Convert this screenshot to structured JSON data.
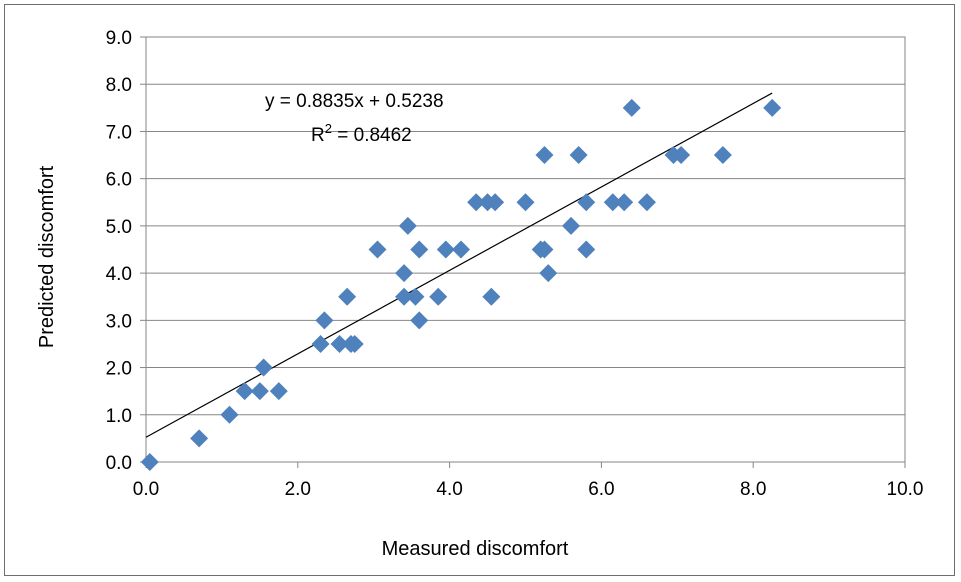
{
  "chart_data": {
    "type": "scatter",
    "title": "",
    "xlabel": "Measured discomfort",
    "ylabel": "Predicted discomfort",
    "xlim": [
      0,
      10
    ],
    "ylim": [
      0,
      9
    ],
    "xticks": [
      "0.0",
      "2.0",
      "4.0",
      "6.0",
      "8.0",
      "10.0"
    ],
    "yticks": [
      "0.0",
      "1.0",
      "2.0",
      "3.0",
      "4.0",
      "5.0",
      "6.0",
      "7.0",
      "8.0",
      "9.0"
    ],
    "grid": "horizontal",
    "legend": "none",
    "colors": {
      "marker": "#4f81bd",
      "trendline": "#000000",
      "gridline": "#868686"
    },
    "marker": "diamond",
    "series": [
      {
        "x": [
          0.05,
          0.7,
          1.1,
          1.3,
          1.5,
          1.55,
          1.75,
          2.3,
          2.35,
          2.55,
          2.65,
          2.7,
          2.75,
          3.05,
          3.4,
          3.4,
          3.45,
          3.55,
          3.6,
          3.6,
          3.85,
          3.95,
          4.15,
          4.35,
          4.5,
          4.55,
          4.6,
          5.0,
          5.2,
          5.25,
          5.25,
          5.3,
          5.6,
          5.7,
          5.8,
          5.8,
          6.15,
          6.3,
          6.4,
          6.6,
          6.95,
          7.05,
          7.6,
          8.25
        ],
        "y": [
          0.0,
          0.5,
          1.0,
          1.5,
          1.5,
          2.0,
          1.5,
          2.5,
          3.0,
          2.5,
          3.5,
          2.5,
          2.5,
          4.5,
          3.5,
          4.0,
          5.0,
          3.5,
          4.5,
          3.0,
          3.5,
          4.5,
          4.5,
          5.5,
          5.5,
          3.5,
          5.5,
          5.5,
          4.5,
          4.5,
          6.5,
          4.0,
          5.0,
          6.5,
          5.5,
          4.5,
          5.5,
          5.5,
          7.5,
          5.5,
          6.5,
          6.5,
          6.5,
          7.5
        ]
      }
    ],
    "trendline": {
      "slope": 0.8835,
      "intercept": 0.5238,
      "x_range": [
        0,
        8.25
      ]
    },
    "annotations": {
      "equation": "y = 0.8835x + 0.5238",
      "r2_prefix": "R",
      "r2_superscript": "2",
      "r2_value": " = 0.8462"
    }
  }
}
